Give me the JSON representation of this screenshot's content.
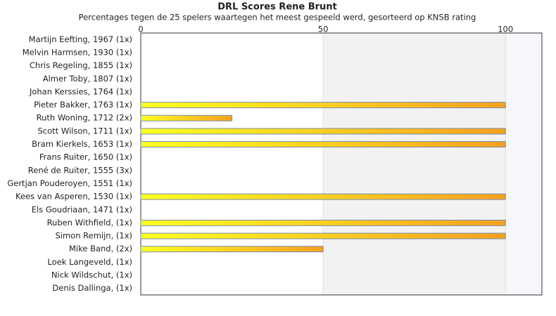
{
  "chart_data": {
    "type": "hbar",
    "title": "DRL Scores Rene Brunt",
    "subtitle": "Percentages tegen de 25 spelers waartegen het meest gespeeld werd, gesorteerd op KNSB rating",
    "categories": [
      "Martijn Eefting, 1967 (1x)",
      "Melvin Harmsen, 1930 (1x)",
      "Chris Regeling, 1855 (1x)",
      "Almer Toby, 1807 (1x)",
      "Johan Kerssies, 1764 (1x)",
      "Pieter Bakker, 1763 (1x)",
      "Ruth Woning, 1712 (2x)",
      "Scott Wilson, 1711 (1x)",
      "Bram Kierkels, 1653 (1x)",
      "Frans Ruiter, 1650 (1x)",
      "René de Ruiter, 1555 (3x)",
      "Gertjan Pouderoyen, 1551 (1x)",
      "Kees van Asperen, 1530 (1x)",
      "Els Goudriaan, 1471 (1x)",
      "Ruben Withfield,  (1x)",
      "Simon Remijn,  (1x)",
      "Mike Band,  (2x)",
      "Loek Langeveld,  (1x)",
      "Nick Wildschut,  (1x)",
      "Denis Dallinga,  (1x)"
    ],
    "values": [
      0,
      0,
      0,
      0,
      0,
      100,
      25,
      100,
      100,
      0,
      0,
      0,
      100,
      0,
      100,
      100,
      50,
      0,
      0,
      0
    ],
    "colors": [
      "#ffff22",
      "#f5a020"
    ],
    "xlim": [
      0,
      110
    ],
    "xticks": [
      0,
      50,
      100
    ]
  }
}
